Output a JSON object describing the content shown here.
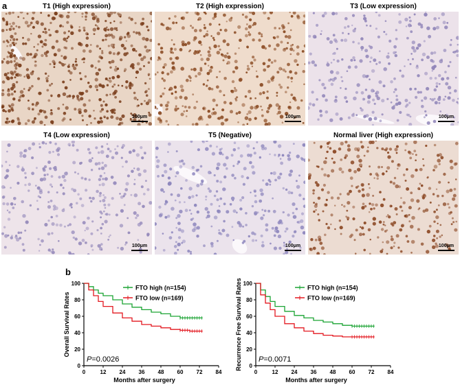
{
  "panel_a": {
    "letter": "a",
    "tiles": [
      {
        "title": "T1 (High expression)",
        "scale": "100μm",
        "stain": "strong",
        "background": "#e9d6c6",
        "nuclei_color": "#7a3e1c"
      },
      {
        "title": "T2 (High expression)",
        "scale": "100μm",
        "stain": "moderate",
        "background": "#efdccc",
        "nuclei_color": "#8a4a22"
      },
      {
        "title": "T3 (Low expression)",
        "scale": "100μm",
        "stain": "weak",
        "background": "#ece2ea",
        "nuclei_color": "#8f84b8"
      },
      {
        "title": "T4 (Low expression)",
        "scale": "100μm",
        "stain": "weak",
        "background": "#eee4ea",
        "nuclei_color": "#958abb"
      },
      {
        "title": "T5 (Negative)",
        "scale": "100μm",
        "stain": "negative",
        "background": "#ebe3ec",
        "nuclei_color": "#8d86bd"
      },
      {
        "title": "Normal liver (High expression)",
        "scale": "100μm",
        "stain": "normal",
        "background": "#ecdcd2",
        "nuclei_color": "#8a4622"
      }
    ]
  },
  "panel_b": {
    "letter": "b",
    "colors": {
      "high": "#1aa332",
      "low": "#e3171f"
    },
    "charts": [
      {
        "ylabel": "Overall Survival Rates",
        "xlabel": "Months after surgery",
        "p_prefix": "P",
        "p_value": "=0.0026",
        "legend": [
          {
            "label": "FTO high (n=154)",
            "key": "high"
          },
          {
            "label": "FTO low (n=169)",
            "key": "low"
          }
        ]
      },
      {
        "ylabel": "Recurrence Free Survival Rates",
        "xlabel": "Months after surgery",
        "p_prefix": "P",
        "p_value": "=0.0071",
        "legend": [
          {
            "label": "FTO high (n=154)",
            "key": "high"
          },
          {
            "label": "FTO low (n=169)",
            "key": "low"
          }
        ]
      }
    ]
  },
  "chart_data": [
    {
      "type": "line",
      "title": "",
      "xlabel": "Months after surgery",
      "ylabel": "Overall Survival Rates",
      "xlim": [
        0,
        84
      ],
      "ylim": [
        0,
        100
      ],
      "xticks": [
        "0",
        "12",
        "24",
        "36",
        "48",
        "60",
        "72",
        "84"
      ],
      "yticks": [
        "0",
        "20",
        "40",
        "60",
        "80",
        "100"
      ],
      "step": true,
      "series": [
        {
          "name": "FTO high (n=154)",
          "x": [
            0,
            3,
            6,
            9,
            12,
            18,
            24,
            30,
            36,
            42,
            48,
            54,
            60,
            66,
            74
          ],
          "values": [
            100,
            96,
            92,
            88,
            85,
            80,
            75,
            71,
            68,
            65,
            63,
            60,
            58,
            58,
            58
          ]
        },
        {
          "name": "FTO low (n=169)",
          "x": [
            0,
            3,
            6,
            9,
            12,
            18,
            24,
            30,
            36,
            42,
            48,
            54,
            60,
            66,
            74
          ],
          "values": [
            100,
            92,
            85,
            78,
            72,
            64,
            58,
            54,
            50,
            48,
            46,
            44,
            43,
            42,
            42
          ]
        }
      ]
    },
    {
      "type": "line",
      "title": "",
      "xlabel": "Months after surgery",
      "ylabel": "Recurrence Free Survival Rates",
      "xlim": [
        0,
        84
      ],
      "ylim": [
        0,
        100
      ],
      "xticks": [
        "0",
        "12",
        "24",
        "36",
        "48",
        "60",
        "72",
        "84"
      ],
      "yticks": [
        "0",
        "20",
        "40",
        "60",
        "80",
        "100"
      ],
      "step": true,
      "series": [
        {
          "name": "FTO high (n=154)",
          "x": [
            0,
            3,
            6,
            9,
            12,
            18,
            24,
            30,
            36,
            42,
            48,
            54,
            60,
            66,
            74
          ],
          "values": [
            100,
            92,
            84,
            78,
            72,
            66,
            61,
            58,
            55,
            53,
            51,
            49,
            48,
            48,
            48
          ]
        },
        {
          "name": "FTO low (n=169)",
          "x": [
            0,
            3,
            6,
            9,
            12,
            18,
            24,
            30,
            36,
            42,
            48,
            54,
            60,
            66,
            74
          ],
          "values": [
            100,
            86,
            76,
            68,
            60,
            51,
            46,
            42,
            39,
            37,
            36,
            35,
            35,
            35,
            35
          ]
        }
      ]
    }
  ]
}
